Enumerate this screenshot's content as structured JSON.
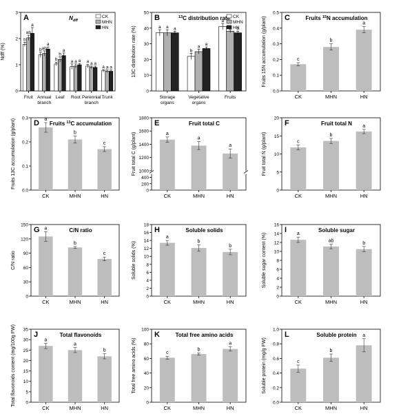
{
  "colors": {
    "bar_gray": "#bdbdbd",
    "ck_white": "#ffffff",
    "mhn_gray": "#b0b0b0",
    "hn_black": "#222222",
    "axis": "#000000"
  },
  "chart_data": [
    {
      "id": "A",
      "letter": "A",
      "type": "bar",
      "title": "N",
      "title_sub": "dff",
      "ylabel": "Ndff (%)",
      "ylim": [
        0,
        3
      ],
      "yticks": [
        0,
        1,
        2,
        3
      ],
      "categories": [
        "Fruit",
        "Annual branch",
        "Leaf",
        "Root",
        "Perennial branch",
        "Trunk"
      ],
      "category_lines": [
        [
          "Fruit"
        ],
        [
          "Annual",
          "branch"
        ],
        [
          "Leaf"
        ],
        [
          "Root"
        ],
        [
          "Perennial",
          "branch"
        ],
        [
          "Trunk"
        ]
      ],
      "legend": [
        "CK",
        "MHN",
        "HN"
      ],
      "legend_position": "top-right",
      "series": [
        {
          "name": "CK",
          "values": [
            1.78,
            1.38,
            1.03,
            0.93,
            0.95,
            0.77
          ],
          "err": [
            0.08,
            0.1,
            0.07,
            0.1,
            0.07,
            0.05
          ],
          "sig": [
            "b",
            "b",
            "b",
            "a",
            "a",
            "a"
          ]
        },
        {
          "name": "MHN",
          "values": [
            2.03,
            1.43,
            1.2,
            0.95,
            0.9,
            0.75
          ],
          "err": [
            0.1,
            0.1,
            0.1,
            0.08,
            0.05,
            0.05
          ],
          "sig": [
            "ab",
            "ab",
            "b",
            "a",
            "a",
            "a"
          ]
        },
        {
          "name": "HN",
          "values": [
            2.2,
            1.6,
            1.35,
            1.0,
            0.9,
            0.75
          ],
          "err": [
            0.22,
            0.08,
            0.1,
            0.05,
            0.05,
            0.05
          ],
          "sig": [
            "a",
            "a",
            "a",
            "a",
            "a",
            "a"
          ]
        }
      ]
    },
    {
      "id": "B",
      "letter": "B",
      "type": "bar",
      "title": "13C distribution rate",
      "title_sup": "13",
      "title_rest": "C distribution rate",
      "ylabel": "13C distribution rate (%)",
      "ylim": [
        0,
        50
      ],
      "yticks": [
        0,
        10,
        20,
        30,
        40,
        50
      ],
      "categories": [
        "Storage organs",
        "Vegetative organs",
        "Fruits"
      ],
      "category_lines": [
        [
          "Storage",
          "organs"
        ],
        [
          "Vegetative",
          "organs"
        ],
        [
          "Fruits"
        ]
      ],
      "legend": [
        "CK",
        "MHN",
        "HN"
      ],
      "legend_position": "top-right",
      "series": [
        {
          "name": "CK",
          "values": [
            37,
            22,
            41
          ],
          "err": [
            2,
            2,
            2
          ],
          "sig": [
            "a",
            "b",
            "a"
          ]
        },
        {
          "name": "MHN",
          "values": [
            37,
            25,
            38
          ],
          "err": [
            2,
            1.5,
            1
          ],
          "sig": [
            "a",
            "a",
            "b"
          ]
        },
        {
          "name": "HN",
          "values": [
            37,
            27,
            37
          ],
          "err": [
            1,
            1,
            1
          ],
          "sig": [
            "a",
            "a",
            "b"
          ]
        }
      ]
    },
    {
      "id": "C",
      "letter": "C",
      "type": "bar",
      "title": "Fruits 15N accumulation",
      "title_pre": "Fruits ",
      "title_sup": "15",
      "title_rest": "N accumulation",
      "ylabel": "Fruits 15N accumulation (g/plant)",
      "ylim": [
        0,
        0.5
      ],
      "yticks": [
        0,
        0.1,
        0.2,
        0.3,
        0.4,
        0.5
      ],
      "categories": [
        "CK",
        "MHN",
        "HN"
      ],
      "values": [
        0.17,
        0.28,
        0.39
      ],
      "err": [
        0.01,
        0.02,
        0.02
      ],
      "sig": [
        "c",
        "b",
        "a"
      ]
    },
    {
      "id": "D",
      "letter": "D",
      "type": "bar",
      "title": "Fruits 13C accumulation",
      "title_pre": "Fruits ",
      "title_sup": "13",
      "title_rest": "C accumulation",
      "ylabel": "Fruits 13C accumulation (g/plant)",
      "ylim": [
        0,
        0.3
      ],
      "yticks": [
        0,
        0.1,
        0.2,
        0.3
      ],
      "categories": [
        "CK",
        "MHN",
        "HN"
      ],
      "values": [
        0.26,
        0.21,
        0.17
      ],
      "err": [
        0.02,
        0.015,
        0.01
      ],
      "sig": [
        "a",
        "b",
        "c"
      ]
    },
    {
      "id": "E",
      "letter": "E",
      "type": "bar",
      "title": "Fruit total C",
      "ylabel": "Fruit total C (g/plant)",
      "broken_axis": true,
      "yticks_lower": [
        0,
        200,
        400
      ],
      "yticks_upper": [
        1000,
        1200,
        1400,
        1600,
        1800
      ],
      "categories": [
        "CK",
        "MHN",
        "HN"
      ],
      "values": [
        1470,
        1380,
        1260
      ],
      "err": [
        40,
        60,
        70
      ],
      "sig": [
        "a",
        "a",
        "a"
      ]
    },
    {
      "id": "F",
      "letter": "F",
      "type": "bar",
      "title": "Fruit total N",
      "ylabel": "Fruit total N (g/plant)",
      "ylim": [
        0,
        20
      ],
      "yticks": [
        0,
        5,
        10,
        15,
        20
      ],
      "categories": [
        "CK",
        "MHN",
        "HN"
      ],
      "values": [
        11.8,
        13.6,
        16.2
      ],
      "err": [
        0.7,
        0.7,
        0.6
      ],
      "sig": [
        "c",
        "b",
        "a"
      ]
    },
    {
      "id": "G",
      "letter": "G",
      "type": "bar",
      "title": "C/N ratio",
      "ylabel": "C/N ratio",
      "ylim": [
        0,
        150
      ],
      "yticks": [
        0,
        30,
        60,
        90,
        120,
        150
      ],
      "categories": [
        "CK",
        "MHN",
        "HN"
      ],
      "values": [
        125,
        102,
        78
      ],
      "err": [
        10,
        2,
        4
      ],
      "sig": [
        "a",
        "b",
        "c"
      ]
    },
    {
      "id": "H",
      "letter": "H",
      "type": "bar",
      "title": "Soluble solids",
      "ylabel": "Soluble solids (%)",
      "ylim": [
        0,
        18
      ],
      "yticks": [
        0,
        2,
        4,
        6,
        8,
        10,
        12,
        14,
        16,
        18
      ],
      "categories": [
        "CK",
        "MHN",
        "HN"
      ],
      "values": [
        13.4,
        12.1,
        11.1
      ],
      "err": [
        0.6,
        0.8,
        0.7
      ],
      "sig": [
        "a",
        "b",
        "b"
      ]
    },
    {
      "id": "I",
      "letter": "I",
      "type": "bar",
      "title": "Soluble sugar",
      "ylabel": "Soluble sugar content (%)",
      "ylim": [
        0,
        16
      ],
      "yticks": [
        0,
        2,
        4,
        6,
        8,
        10,
        12,
        14,
        16
      ],
      "categories": [
        "CK",
        "MHN",
        "HN"
      ],
      "values": [
        12.6,
        11.1,
        10.5
      ],
      "err": [
        0.6,
        0.5,
        0.6
      ],
      "sig": [
        "a",
        "ab",
        "b"
      ]
    },
    {
      "id": "J",
      "letter": "J",
      "type": "bar",
      "title": "Total flavonoids",
      "ylabel": "Total flavonoids content (mg/100g FW)",
      "ylim": [
        0,
        35
      ],
      "yticks": [
        0,
        5,
        10,
        15,
        20,
        25,
        30,
        35
      ],
      "categories": [
        "CK",
        "MHN",
        "HN"
      ],
      "values": [
        27,
        25,
        22
      ],
      "err": [
        1.3,
        1.2,
        1.2
      ],
      "sig": [
        "a",
        "a",
        "b"
      ]
    },
    {
      "id": "K",
      "letter": "K",
      "type": "bar",
      "title": "Total free amino acids",
      "ylabel": "Total free amino acids (%)",
      "ylim": [
        0,
        100
      ],
      "yticks": [
        0,
        20,
        40,
        60,
        80,
        100
      ],
      "categories": [
        "CK",
        "MHN",
        "HN"
      ],
      "values": [
        61,
        66,
        73
      ],
      "err": [
        2,
        1.5,
        3
      ],
      "sig": [
        "c",
        "b",
        "a"
      ]
    },
    {
      "id": "L",
      "letter": "L",
      "type": "bar",
      "title": "Soluble protein",
      "ylabel": "Soluble protein (mg/g FW)",
      "ylim": [
        0,
        1.0
      ],
      "yticks": [
        0,
        0.2,
        0.4,
        0.6,
        0.8,
        1.0
      ],
      "categories": [
        "CK",
        "MHN",
        "HN"
      ],
      "values": [
        0.46,
        0.61,
        0.78
      ],
      "err": [
        0.05,
        0.05,
        0.09
      ],
      "sig": [
        "c",
        "b",
        "a"
      ]
    }
  ]
}
